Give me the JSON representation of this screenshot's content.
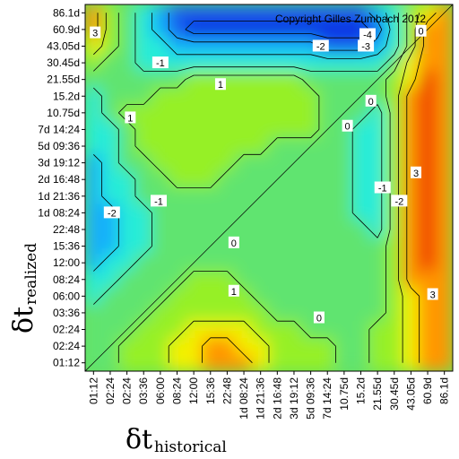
{
  "chart_data": {
    "type": "heatmap",
    "copyright": "Copyright Gilles Zumbach 2012",
    "xlabel": {
      "symbol": "δt",
      "subscript": "historical"
    },
    "ylabel": {
      "symbol": "δt",
      "subscript": "realized"
    },
    "x_ticks": [
      "01:12",
      "02:24",
      "02:24",
      "03:36",
      "06:00",
      "08:24",
      "12:00",
      "15:36",
      "22:48",
      "1d 08:24",
      "1d 21:36",
      "2d 16:48",
      "3d 19:12",
      "5d 09:36",
      "7d 14:24",
      "10.75d",
      "15.2d",
      "21.55d",
      "30.45d",
      "43.05d",
      "60.9d",
      "86.1d"
    ],
    "y_ticks": [
      "86.1d",
      "60.9d",
      "43.05d",
      "30.45d",
      "21.55d",
      "15.2d",
      "10.75d",
      "7d 14:24",
      "5d 09:36",
      "3d 19:12",
      "2d 16:48",
      "1d 21:36",
      "1d 08:24",
      "22:48",
      "15:36",
      "12:00",
      "08:24",
      "06:00",
      "03:36",
      "02:24",
      "02:24",
      "01:12"
    ],
    "contour_levels": [
      "-4",
      "-3",
      "-2",
      "-1",
      "0",
      "1",
      "2",
      "3"
    ],
    "contour_labels": [
      {
        "text": "-4",
        "col": 16.4,
        "row": 1.3
      },
      {
        "text": "-3",
        "col": 16.3,
        "row": 2.0
      },
      {
        "text": "-2",
        "col": 13.6,
        "row": 2.0
      },
      {
        "text": "-1",
        "col": 4.0,
        "row": 3.0
      },
      {
        "text": "1",
        "col": 7.6,
        "row": 4.3
      },
      {
        "text": "1",
        "col": 2.2,
        "row": 6.3
      },
      {
        "text": "3",
        "col": 0.1,
        "row": 1.2
      },
      {
        "text": "0",
        "col": 19.6,
        "row": 1.1
      },
      {
        "text": "0",
        "col": 16.6,
        "row": 5.3
      },
      {
        "text": "0",
        "col": 15.2,
        "row": 6.8
      },
      {
        "text": "-1",
        "col": 3.9,
        "row": 11.3
      },
      {
        "text": "-2",
        "col": 1.1,
        "row": 12.0
      },
      {
        "text": "0",
        "col": 8.4,
        "row": 13.8
      },
      {
        "text": "1",
        "col": 8.4,
        "row": 16.7
      },
      {
        "text": "0",
        "col": 13.5,
        "row": 18.3
      },
      {
        "text": "-1",
        "col": 17.3,
        "row": 10.5
      },
      {
        "text": "-2",
        "col": 18.3,
        "row": 11.3
      },
      {
        "text": "3",
        "col": 19.3,
        "row": 9.6
      },
      {
        "text": "3",
        "col": 20.3,
        "row": 16.9
      }
    ],
    "grid_rows": [
      [
        3,
        1,
        0,
        -1,
        -2,
        -3,
        -3,
        -3,
        -3,
        -3,
        -3,
        -3,
        -3,
        -3,
        -3,
        -3,
        -3,
        -2,
        -1,
        1,
        2,
        3
      ],
      [
        3,
        1,
        0,
        -1,
        -2,
        -3,
        -4,
        -4,
        -4,
        -4,
        -4,
        -4,
        -4,
        -4,
        -4,
        -4,
        -4,
        -3,
        -1,
        1,
        3,
        3
      ],
      [
        2,
        1,
        0,
        -1,
        -1,
        -2,
        -2,
        -2,
        -2,
        -2,
        -2,
        -2,
        -2,
        -2,
        -3,
        -3,
        -3,
        -2,
        -1,
        1,
        3,
        3
      ],
      [
        1,
        0,
        0,
        -1,
        -1,
        -1,
        -1,
        -1,
        -1,
        -1,
        -1,
        -1,
        -1,
        -1,
        -1,
        -1,
        -1,
        -1,
        0,
        2,
        3,
        3
      ],
      [
        0,
        0,
        0,
        0,
        0,
        0,
        1,
        1,
        1,
        1,
        1,
        1,
        1,
        0,
        0,
        0,
        0,
        0,
        1,
        2,
        4,
        3
      ],
      [
        -1,
        0,
        0,
        0,
        1,
        1,
        1,
        1,
        1,
        1,
        1,
        1,
        1,
        1,
        0,
        0,
        0,
        0,
        1,
        3,
        4,
        3
      ],
      [
        -1,
        0,
        1,
        1,
        1,
        1,
        1,
        1,
        1,
        1,
        1,
        1,
        1,
        1,
        0,
        0,
        0,
        -1,
        1,
        3,
        4,
        3
      ],
      [
        -1,
        -1,
        0,
        1,
        1,
        1,
        1,
        1,
        1,
        1,
        1,
        1,
        1,
        1,
        0,
        0,
        -1,
        -1,
        1,
        3,
        4,
        3
      ],
      [
        -1,
        -1,
        0,
        1,
        1,
        1,
        1,
        1,
        1,
        1,
        1,
        0,
        0,
        0,
        0,
        0,
        -1,
        -1,
        1,
        3,
        4,
        3
      ],
      [
        -2,
        -1,
        0,
        0,
        1,
        1,
        1,
        1,
        1,
        0,
        0,
        0,
        0,
        0,
        0,
        0,
        -1,
        -1,
        1,
        3,
        4,
        3
      ],
      [
        -2,
        -1,
        -1,
        0,
        0,
        1,
        1,
        1,
        0,
        0,
        0,
        0,
        0,
        0,
        0,
        0,
        -1,
        -1,
        1,
        3,
        4,
        3
      ],
      [
        -2,
        -1,
        -1,
        0,
        0,
        0,
        0,
        0,
        0,
        0,
        0,
        0,
        0,
        0,
        0,
        0,
        -1,
        -1,
        1,
        3,
        4,
        3
      ],
      [
        -2,
        -2,
        -1,
        -1,
        0,
        0,
        0,
        0,
        0,
        0,
        0,
        0,
        0,
        0,
        0,
        0,
        -1,
        -1,
        1,
        3,
        4,
        3
      ],
      [
        -2,
        -2,
        -1,
        -1,
        0,
        0,
        0,
        0,
        0,
        0,
        0,
        0,
        0,
        0,
        0,
        0,
        0,
        -1,
        1,
        3,
        4,
        3
      ],
      [
        -2,
        -2,
        -1,
        -1,
        0,
        0,
        0,
        0,
        0,
        0,
        0,
        0,
        0,
        0,
        0,
        0,
        0,
        0,
        1,
        3,
        4,
        3
      ],
      [
        -2,
        -1,
        -1,
        0,
        0,
        0,
        0,
        0,
        0,
        0,
        0,
        0,
        0,
        0,
        0,
        0,
        0,
        0,
        1,
        3,
        4,
        3
      ],
      [
        -1,
        -1,
        0,
        0,
        0,
        0,
        1,
        1,
        1,
        0,
        0,
        0,
        0,
        0,
        0,
        0,
        0,
        0,
        1,
        3,
        3,
        3
      ],
      [
        -1,
        0,
        0,
        0,
        0,
        1,
        1,
        1,
        1,
        1,
        0,
        0,
        0,
        0,
        0,
        0,
        0,
        0,
        1,
        2,
        3,
        3
      ],
      [
        0,
        0,
        0,
        0,
        1,
        1,
        1,
        1,
        1,
        1,
        1,
        0,
        0,
        0,
        0,
        0,
        0,
        0,
        1,
        2,
        3,
        3
      ],
      [
        0,
        0,
        0,
        1,
        1,
        1,
        2,
        2,
        2,
        2,
        1,
        1,
        1,
        0,
        0,
        0,
        0,
        1,
        1,
        2,
        3,
        3
      ],
      [
        0,
        0,
        1,
        1,
        1,
        2,
        2,
        3,
        3,
        2,
        2,
        1,
        1,
        1,
        1,
        0,
        0,
        1,
        1,
        2,
        3,
        3
      ],
      [
        0,
        0,
        1,
        1,
        1,
        2,
        2,
        3,
        3,
        3,
        2,
        1,
        1,
        1,
        1,
        0,
        0,
        1,
        1,
        2,
        3,
        3
      ]
    ]
  }
}
